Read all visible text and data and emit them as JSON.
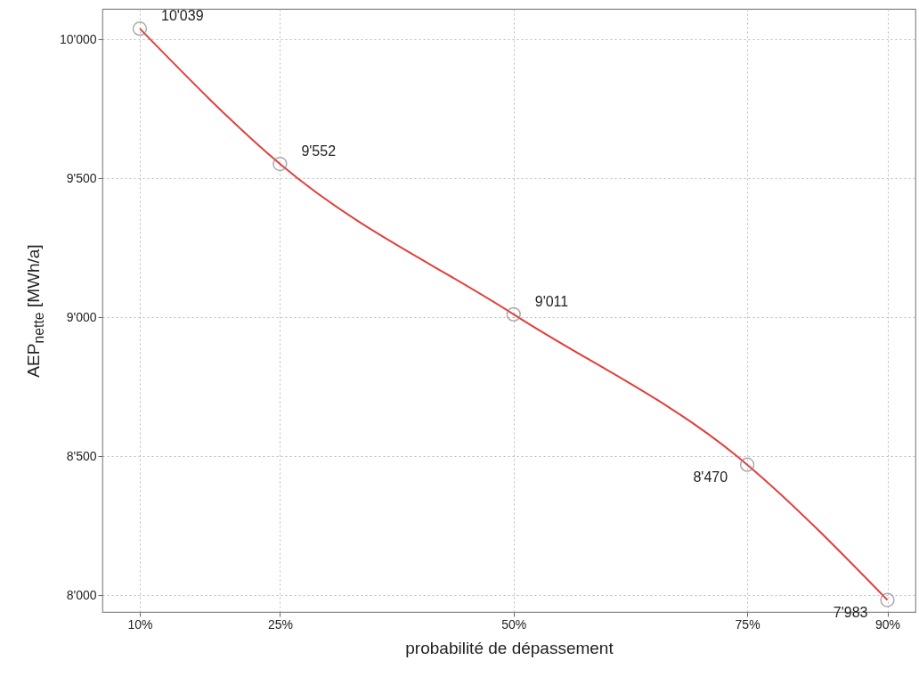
{
  "chart_data": {
    "type": "line",
    "xlabel": "probabilité de dépassement",
    "ylabel": "AEP$_{nette}$ [MWh/a]",
    "x": [
      10,
      25,
      50,
      75,
      90
    ],
    "series": [
      {
        "color": "#e0403c",
        "values": [
          10039,
          9552,
          9011,
          8470,
          7983
        ],
        "value_labels": [
          "10'039",
          "9'552",
          "9'011",
          "8'470",
          "7'983"
        ]
      }
    ],
    "xlim": [
      6,
      93
    ],
    "ylim": [
      7940,
      10110
    ],
    "xticks": [
      {
        "value": 10,
        "label": "10%"
      },
      {
        "value": 25,
        "label": "25%"
      },
      {
        "value": 50,
        "label": "50%"
      },
      {
        "value": 75,
        "label": "75%"
      },
      {
        "value": 90,
        "label": "90%"
      }
    ],
    "yticks": [
      {
        "value": 8000,
        "label": "8'000"
      },
      {
        "value": 8500,
        "label": "8'500"
      },
      {
        "value": 9000,
        "label": "9'000"
      },
      {
        "value": 9500,
        "label": "9'500"
      },
      {
        "value": 10000,
        "label": "10'000"
      }
    ],
    "grid": true,
    "marker": "circle",
    "line_style": "solid"
  }
}
